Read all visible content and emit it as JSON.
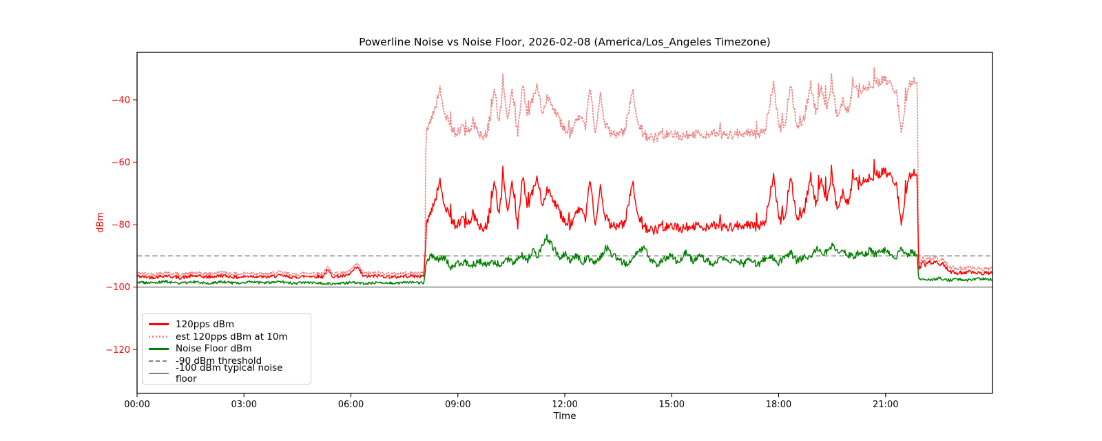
{
  "chart_data": {
    "type": "line",
    "title": "Powerline Noise vs Noise Floor, 2026-02-08 (America/Los_Angeles Timezone)",
    "xlabel": "Time",
    "ylabel": "dBm",
    "xlim_hours": [
      0,
      24
    ],
    "ylim": [
      -134,
      -24.8
    ],
    "grid": false,
    "x_tick_hours": [
      0,
      3,
      6,
      9,
      12,
      15,
      18,
      21
    ],
    "x_tick_labels": [
      "00:00",
      "03:00",
      "06:00",
      "09:00",
      "12:00",
      "15:00",
      "18:00",
      "21:00"
    ],
    "y_tick_values": [
      -40,
      -60,
      -80,
      -100,
      -120
    ],
    "y_tick_labels": [
      "−40",
      "−60",
      "−80",
      "−100",
      "−120"
    ],
    "y_tick_color": "#ff0000",
    "x_tick_color": "#000000",
    "legend_position": "lower left",
    "noise_seed": 42,
    "sample_step_hours": 0.02,
    "series": [
      {
        "name": "120pps dBm",
        "color": "#ff0000",
        "style": "solid",
        "render": "noisy-line",
        "noise_segments": [
          {
            "from": 0,
            "to": 8.08,
            "amp": 0.55
          },
          {
            "from": 8.08,
            "to": 21.9,
            "amp": 1.5,
            "spike_prob": 0.05,
            "spike_amp": 6
          },
          {
            "from": 21.9,
            "to": 24.01,
            "amp": 0.6
          }
        ],
        "keypoints": [
          [
            0,
            -96.5
          ],
          [
            0.4,
            -96.9
          ],
          [
            0.8,
            -96.3
          ],
          [
            1.2,
            -97
          ],
          [
            1.6,
            -96.4
          ],
          [
            2,
            -96.8
          ],
          [
            2.4,
            -96.3
          ],
          [
            2.8,
            -96.9
          ],
          [
            3.2,
            -96.4
          ],
          [
            3.6,
            -96.8
          ],
          [
            4,
            -96.3
          ],
          [
            4.4,
            -96.9
          ],
          [
            4.8,
            -96.4
          ],
          [
            5.2,
            -96.7
          ],
          [
            5.35,
            -94.6
          ],
          [
            5.5,
            -96.6
          ],
          [
            5.9,
            -96.4
          ],
          [
            6.18,
            -93.6
          ],
          [
            6.35,
            -96.6
          ],
          [
            6.8,
            -96.4
          ],
          [
            7.2,
            -96.8
          ],
          [
            7.6,
            -96.4
          ],
          [
            8.05,
            -96.6
          ],
          [
            8.12,
            -80
          ],
          [
            8.2,
            -76.5
          ],
          [
            8.35,
            -72.5
          ],
          [
            8.5,
            -66.5
          ],
          [
            8.62,
            -73
          ],
          [
            8.78,
            -77.5
          ],
          [
            8.95,
            -80.5
          ],
          [
            9.1,
            -78
          ],
          [
            9.25,
            -81
          ],
          [
            9.42,
            -76.5
          ],
          [
            9.58,
            -80
          ],
          [
            9.75,
            -81.5
          ],
          [
            9.9,
            -77
          ],
          [
            10.03,
            -65.5
          ],
          [
            10.15,
            -78
          ],
          [
            10.28,
            -64.5
          ],
          [
            10.4,
            -76
          ],
          [
            10.52,
            -67
          ],
          [
            10.68,
            -80
          ],
          [
            10.82,
            -64.5
          ],
          [
            10.95,
            -75
          ],
          [
            11.08,
            -70
          ],
          [
            11.22,
            -65.5
          ],
          [
            11.38,
            -74
          ],
          [
            11.52,
            -68
          ],
          [
            11.68,
            -71.5
          ],
          [
            11.82,
            -75.5
          ],
          [
            12,
            -78.5
          ],
          [
            12.15,
            -80.5
          ],
          [
            12.3,
            -77
          ],
          [
            12.45,
            -74.5
          ],
          [
            12.58,
            -79
          ],
          [
            12.7,
            -65.5
          ],
          [
            12.85,
            -79.5
          ],
          [
            13,
            -68
          ],
          [
            13.12,
            -77.5
          ],
          [
            13.3,
            -80
          ],
          [
            13.5,
            -80.5
          ],
          [
            13.7,
            -79.5
          ],
          [
            13.9,
            -66
          ],
          [
            14.05,
            -77.5
          ],
          [
            14.2,
            -80.5
          ],
          [
            14.45,
            -82
          ],
          [
            14.7,
            -81.2
          ],
          [
            15,
            -80.5
          ],
          [
            15.3,
            -81.2
          ],
          [
            15.6,
            -80.2
          ],
          [
            15.9,
            -80.8
          ],
          [
            16.2,
            -80.2
          ],
          [
            16.5,
            -81
          ],
          [
            16.8,
            -80.4
          ],
          [
            17.1,
            -80
          ],
          [
            17.4,
            -81
          ],
          [
            17.62,
            -79.5
          ],
          [
            17.86,
            -64
          ],
          [
            18.02,
            -79
          ],
          [
            18.18,
            -77
          ],
          [
            18.34,
            -64
          ],
          [
            18.5,
            -78
          ],
          [
            18.7,
            -76
          ],
          [
            18.9,
            -64.5
          ],
          [
            19.05,
            -74
          ],
          [
            19.2,
            -65.5
          ],
          [
            19.35,
            -72
          ],
          [
            19.5,
            -64.5
          ],
          [
            19.65,
            -76.5
          ],
          [
            19.8,
            -70
          ],
          [
            19.95,
            -73
          ],
          [
            20.1,
            -64.5
          ],
          [
            20.25,
            -68
          ],
          [
            20.4,
            -65.5
          ],
          [
            20.55,
            -66.5
          ],
          [
            20.7,
            -64
          ],
          [
            20.85,
            -63.5
          ],
          [
            21,
            -63.2
          ],
          [
            21.15,
            -64.2
          ],
          [
            21.3,
            -67
          ],
          [
            21.44,
            -79.5
          ],
          [
            21.56,
            -70
          ],
          [
            21.66,
            -64.5
          ],
          [
            21.78,
            -63.5
          ],
          [
            21.88,
            -63.2
          ],
          [
            21.93,
            -94.5
          ],
          [
            22.05,
            -91.8
          ],
          [
            22.1,
            -93.5
          ],
          [
            22.2,
            -91.5
          ],
          [
            22.3,
            -92.5
          ],
          [
            22.4,
            -91.8
          ],
          [
            22.5,
            -92.8
          ],
          [
            22.6,
            -92.2
          ],
          [
            22.7,
            -93.8
          ],
          [
            22.85,
            -95.2
          ],
          [
            23,
            -95.5
          ],
          [
            23.3,
            -95.1
          ],
          [
            23.6,
            -95.6
          ],
          [
            24,
            -95.3
          ]
        ]
      },
      {
        "name": "est 120pps dBm at 10m",
        "color": "#f08080",
        "style": "dotted",
        "render": "offset-of-series-0",
        "offset_segments": [
          {
            "from": 0,
            "to": 8.08,
            "offset": 1.0
          },
          {
            "from": 8.08,
            "to": 21.9,
            "offset": 29.5
          },
          {
            "from": 21.9,
            "to": 24.01,
            "offset": 1.4
          }
        ]
      },
      {
        "name": "Noise Floor dBm",
        "color": "#008000",
        "style": "solid",
        "render": "noisy-line",
        "noise_segments": [
          {
            "from": 0,
            "to": 8.08,
            "amp": 0.4
          },
          {
            "from": 8.08,
            "to": 21.9,
            "amp": 1.1
          },
          {
            "from": 21.9,
            "to": 24.01,
            "amp": 0.45
          }
        ],
        "keypoints": [
          [
            0,
            -98.4
          ],
          [
            0.4,
            -98.7
          ],
          [
            0.8,
            -98.2
          ],
          [
            1.2,
            -98.8
          ],
          [
            1.6,
            -98.3
          ],
          [
            2,
            -98.7
          ],
          [
            2.4,
            -98.3
          ],
          [
            2.8,
            -98.7
          ],
          [
            3.2,
            -98.3
          ],
          [
            3.6,
            -98.7
          ],
          [
            4,
            -98.3
          ],
          [
            4.4,
            -98.8
          ],
          [
            4.8,
            -98.4
          ],
          [
            5.2,
            -98.8
          ],
          [
            5.6,
            -99
          ],
          [
            6,
            -98.5
          ],
          [
            6.4,
            -98.9
          ],
          [
            6.8,
            -98.4
          ],
          [
            7.2,
            -98.8
          ],
          [
            7.6,
            -98.4
          ],
          [
            8.05,
            -98.7
          ],
          [
            8.12,
            -91.5
          ],
          [
            8.25,
            -89.6
          ],
          [
            8.45,
            -91.2
          ],
          [
            8.6,
            -90.2
          ],
          [
            8.8,
            -93.6
          ],
          [
            9,
            -92.6
          ],
          [
            9.2,
            -92
          ],
          [
            9.4,
            -93.2
          ],
          [
            9.6,
            -91.6
          ],
          [
            9.8,
            -93
          ],
          [
            10,
            -92.1
          ],
          [
            10.2,
            -92.9
          ],
          [
            10.4,
            -91
          ],
          [
            10.6,
            -92.2
          ],
          [
            10.8,
            -89.6
          ],
          [
            10.95,
            -91.6
          ],
          [
            11.1,
            -88.2
          ],
          [
            11.25,
            -90.2
          ],
          [
            11.35,
            -86.6
          ],
          [
            11.5,
            -84.2
          ],
          [
            11.62,
            -86.2
          ],
          [
            11.75,
            -88.6
          ],
          [
            11.88,
            -90.6
          ],
          [
            12,
            -89.2
          ],
          [
            12.15,
            -91.6
          ],
          [
            12.3,
            -90.1
          ],
          [
            12.5,
            -91.9
          ],
          [
            12.65,
            -90.6
          ],
          [
            12.8,
            -92.1
          ],
          [
            13,
            -90.6
          ],
          [
            13.15,
            -87
          ],
          [
            13.3,
            -89.2
          ],
          [
            13.5,
            -91.2
          ],
          [
            13.7,
            -92.6
          ],
          [
            13.9,
            -91.1
          ],
          [
            14.1,
            -88.2
          ],
          [
            14.25,
            -87.6
          ],
          [
            14.4,
            -91.6
          ],
          [
            14.6,
            -92.6
          ],
          [
            14.8,
            -91.1
          ],
          [
            15,
            -90.1
          ],
          [
            15.2,
            -92.1
          ],
          [
            15.4,
            -88.6
          ],
          [
            15.6,
            -91.6
          ],
          [
            15.8,
            -90.1
          ],
          [
            16,
            -91.6
          ],
          [
            16.2,
            -92.6
          ],
          [
            16.4,
            -90.6
          ],
          [
            16.6,
            -92.1
          ],
          [
            16.8,
            -91.1
          ],
          [
            17,
            -92.6
          ],
          [
            17.2,
            -91.1
          ],
          [
            17.4,
            -92.9
          ],
          [
            17.6,
            -91.1
          ],
          [
            17.8,
            -90.1
          ],
          [
            18,
            -92.1
          ],
          [
            18.2,
            -90.6
          ],
          [
            18.35,
            -89.1
          ],
          [
            18.5,
            -91.6
          ],
          [
            18.7,
            -90.6
          ],
          [
            18.9,
            -90.1
          ],
          [
            19.1,
            -87.6
          ],
          [
            19.25,
            -89.6
          ],
          [
            19.4,
            -88.1
          ],
          [
            19.5,
            -86.6
          ],
          [
            19.65,
            -89.1
          ],
          [
            19.8,
            -88.1
          ],
          [
            19.95,
            -89.6
          ],
          [
            20.1,
            -90.6
          ],
          [
            20.25,
            -88.6
          ],
          [
            20.4,
            -90.1
          ],
          [
            20.55,
            -88.1
          ],
          [
            20.7,
            -89.6
          ],
          [
            20.85,
            -88.6
          ],
          [
            21,
            -88.1
          ],
          [
            21.15,
            -89.6
          ],
          [
            21.3,
            -90.1
          ],
          [
            21.45,
            -87.6
          ],
          [
            21.6,
            -89.6
          ],
          [
            21.75,
            -88.6
          ],
          [
            21.88,
            -89.9
          ],
          [
            21.93,
            -97.4
          ],
          [
            22.2,
            -97.7
          ],
          [
            22.5,
            -97.2
          ],
          [
            22.8,
            -97.8
          ],
          [
            23,
            -97.4
          ],
          [
            23.3,
            -97.8
          ],
          [
            23.6,
            -97.3
          ],
          [
            24,
            -97.6
          ]
        ]
      },
      {
        "name": "-90 dBm threshold",
        "color": "#808080",
        "style": "dashed",
        "render": "hline",
        "value": -90
      },
      {
        "name": "-100 dBm typical noise floor",
        "color": "#808080",
        "style": "solid",
        "render": "hline",
        "value": -100
      }
    ]
  }
}
